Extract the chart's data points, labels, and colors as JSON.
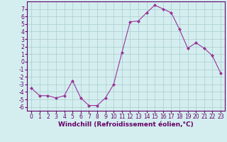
{
  "x": [
    0,
    1,
    2,
    3,
    4,
    5,
    6,
    7,
    8,
    9,
    10,
    11,
    12,
    13,
    14,
    15,
    16,
    17,
    18,
    19,
    20,
    21,
    22,
    23
  ],
  "y": [
    -3.5,
    -4.5,
    -4.5,
    -4.8,
    -4.5,
    -2.5,
    -4.8,
    -5.8,
    -5.8,
    -4.8,
    -3.0,
    1.2,
    5.3,
    5.4,
    6.5,
    7.5,
    7.0,
    6.5,
    4.3,
    1.8,
    2.5,
    1.8,
    0.8,
    -1.5
  ],
  "line_color": "#993399",
  "marker": "D",
  "marker_size": 2.0,
  "bg_color": "#d4eef0",
  "grid_color": "#aacccc",
  "axis_color": "#660066",
  "spine_color": "#660066",
  "xlabel": "Windchill (Refroidissement éolien,°C)",
  "ylim": [
    -6.5,
    8.0
  ],
  "xlim": [
    -0.5,
    23.5
  ],
  "yticks": [
    7,
    6,
    5,
    4,
    3,
    2,
    1,
    0,
    -1,
    -2,
    -3,
    -4,
    -5,
    -6
  ],
  "xticks": [
    0,
    1,
    2,
    3,
    4,
    5,
    6,
    7,
    8,
    9,
    10,
    11,
    12,
    13,
    14,
    15,
    16,
    17,
    18,
    19,
    20,
    21,
    22,
    23
  ],
  "tick_font_size": 5.5,
  "label_font_size": 6.5,
  "linewidth": 0.8,
  "marker_edge_width": 0.5
}
